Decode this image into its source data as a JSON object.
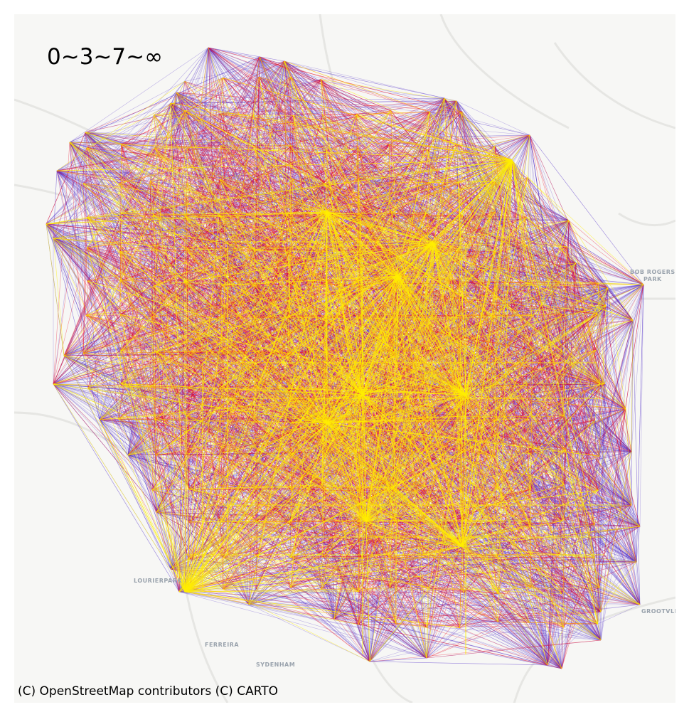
{
  "map": {
    "legend_label": "0~3~7~∞",
    "attribution": "(C) OpenStreetMap contributors (C) CARTO",
    "place_labels": [
      {
        "id": "bob-rogers-park",
        "lines": [
          "BOB ROGERS",
          "PARK"
        ]
      },
      {
        "id": "lourierpark",
        "lines": [
          "LOURIERPARK"
        ]
      },
      {
        "id": "ferreira",
        "lines": [
          "FERREIRA"
        ]
      },
      {
        "id": "sydenham",
        "lines": [
          "SYDENHAM"
        ]
      },
      {
        "id": "grootvlei",
        "lines": [
          "GROOTVLI"
        ]
      }
    ],
    "edge_color_classes": [
      {
        "range": "0~3",
        "color": "#ffee00"
      },
      {
        "range": "3~7",
        "color": "#e8102a"
      },
      {
        "range": "7~∞",
        "color": "#5533cc"
      }
    ],
    "background_color": "#f7f7f5",
    "road_color": "#e6e6e3"
  }
}
